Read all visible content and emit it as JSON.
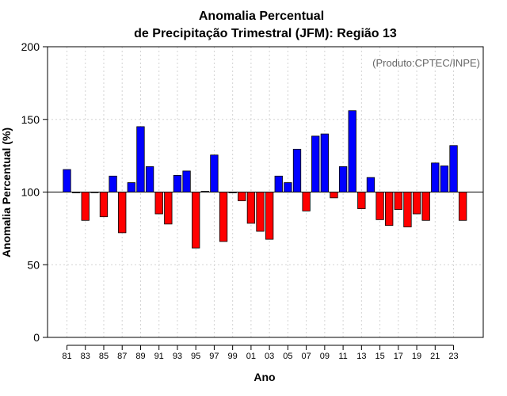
{
  "chart_data": {
    "type": "bar",
    "title": "Anomalia Percentual",
    "subtitle": "de Precipitação Trimestral (JFM): Região 13",
    "xlabel": "Ano",
    "ylabel": "Anomalia Percentual (%)",
    "ylim": [
      0,
      200
    ],
    "yticks": [
      0,
      50,
      100,
      150,
      200
    ],
    "baseline": 100,
    "grid": true,
    "credit": "(Produto:CPTEC/INPE)",
    "colors": {
      "above": "#0000ff",
      "below": "#ff0000",
      "edge": "#000000",
      "grid": "#d3d3d3"
    },
    "tick_labels": [
      "81",
      "83",
      "85",
      "87",
      "89",
      "91",
      "93",
      "95",
      "97",
      "99",
      "01",
      "03",
      "05",
      "07",
      "09",
      "11",
      "13",
      "15",
      "17",
      "19",
      "21",
      "23"
    ],
    "categories": [
      "1981",
      "1982",
      "1983",
      "1984",
      "1985",
      "1986",
      "1987",
      "1988",
      "1989",
      "1990",
      "1991",
      "1992",
      "1993",
      "1994",
      "1995",
      "1996",
      "1997",
      "1998",
      "1999",
      "2000",
      "2001",
      "2002",
      "2003",
      "2004",
      "2005",
      "2006",
      "2007",
      "2008",
      "2009",
      "2010",
      "2011",
      "2012",
      "2013",
      "2014",
      "2015",
      "2016",
      "2017",
      "2018",
      "2019",
      "2020",
      "2021",
      "2022",
      "2023",
      "2024"
    ],
    "values": [
      115.5,
      99.5,
      80.5,
      99.8,
      83,
      111,
      72,
      106.5,
      145,
      117.5,
      85,
      78,
      111.5,
      114.5,
      61.5,
      100.5,
      125.5,
      66,
      99.5,
      94,
      78.5,
      73,
      67.5,
      111,
      106.5,
      129.5,
      87,
      138.5,
      140,
      96,
      117.5,
      156,
      88.5,
      110,
      81,
      77,
      88,
      76,
      85,
      80.5,
      120,
      118,
      132,
      80.5
    ]
  }
}
